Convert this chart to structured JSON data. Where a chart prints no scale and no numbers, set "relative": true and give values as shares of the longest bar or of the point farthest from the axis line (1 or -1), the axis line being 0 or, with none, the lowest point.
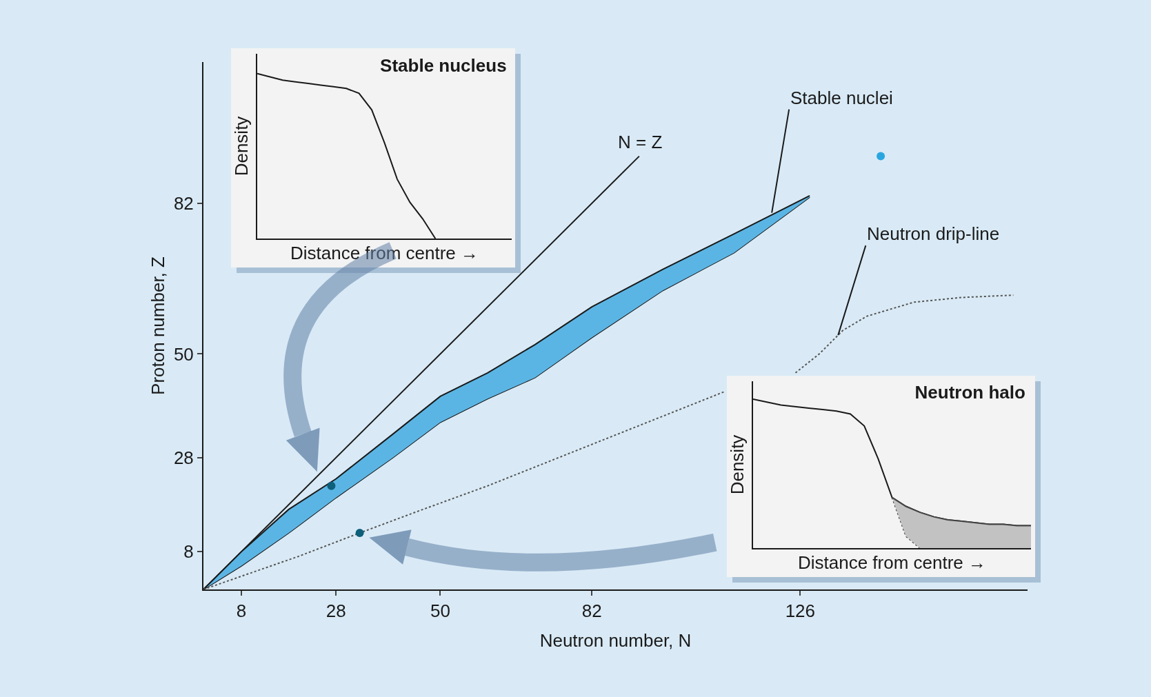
{
  "chart_data": [
    {
      "type": "line",
      "xlabel": "Neutron number, N",
      "ylabel": "Proton number, Z",
      "xlim": [
        0,
        174
      ],
      "ylim": [
        0,
        112
      ],
      "xticks": [
        8,
        28,
        50,
        82,
        126
      ],
      "yticks": [
        8,
        28,
        50,
        82
      ],
      "grid": false,
      "series": [
        {
          "type": "line",
          "color": "#1a1a1a",
          "x": [
            0,
            92
          ],
          "values": [
            0,
            92
          ]
        },
        {
          "type": "line",
          "color": "#1a1a1a",
          "x": [
            0,
            8,
            18,
            28,
            40,
            50,
            60,
            70,
            82,
            97,
            112,
            128
          ],
          "values": [
            0,
            5,
            12,
            19.5,
            28,
            35.5,
            40.5,
            45,
            53.5,
            63.5,
            71.5,
            83.3
          ]
        },
        {
          "type": "area",
          "color": "#5bb5e4",
          "x": [
            0,
            8,
            18,
            28,
            40,
            50,
            60,
            70,
            82,
            97,
            112,
            128
          ],
          "values": [
            0,
            8,
            17,
            23.5,
            33,
            41,
            46,
            52,
            60,
            68,
            75.5,
            83.6
          ]
        },
        {
          "type": "scatter",
          "marker": "circle",
          "color": "#2aa6df",
          "x": [
            143
          ],
          "values": [
            92
          ]
        },
        {
          "type": "line",
          "line_style": "dotted",
          "color": "#555555",
          "x": [
            0,
            10,
            20,
            33,
            45,
            60,
            75,
            90,
            100,
            110,
            115,
            120,
            125,
            130,
            135,
            140,
            150,
            160,
            171
          ],
          "values": [
            0,
            3.5,
            7,
            12,
            16.5,
            22,
            28,
            34,
            38,
            42,
            null,
            null,
            46,
            50,
            55,
            58,
            61,
            62,
            62.5
          ]
        },
        {
          "type": "scatter",
          "marker": "circle",
          "color": "#0d5f7a",
          "x": [
            27,
            33
          ],
          "values": [
            22,
            12
          ]
        }
      ],
      "annotations": [
        "N = Z",
        {
          "text": "Stable nuclei",
          "x": 120,
          "y": 80
        },
        {
          "text": "Neutron drip-line",
          "x": 134,
          "y": 54
        }
      ]
    },
    {
      "type": "line",
      "relative": true,
      "title": "Stable nucleus",
      "xlabel": "Distance from centre →",
      "ylabel": "Density",
      "categories": [
        null,
        null,
        null,
        null,
        null,
        null,
        null,
        null,
        null,
        null,
        null,
        null,
        null,
        null,
        null,
        null,
        null,
        null,
        null,
        null,
        null
      ],
      "series": [
        {
          "color": "#1a1a1a",
          "values": [
            1,
            0.98,
            0.96,
            0.95,
            0.94,
            0.93,
            0.92,
            0.91,
            0.88,
            0.78,
            0.58,
            0.36,
            0.22,
            0.12,
            0,
            null,
            null,
            null,
            null,
            null,
            null
          ]
        }
      ]
    },
    {
      "type": "line",
      "relative": true,
      "title": "Neutron halo",
      "xlabel": "Distance from centre →",
      "ylabel": "Density",
      "categories": [
        null,
        null,
        null,
        null,
        null,
        null,
        null,
        null,
        null,
        null,
        null,
        null,
        null,
        null,
        null,
        null,
        null,
        null,
        null,
        null,
        null
      ],
      "series": [
        {
          "color": "#1a1a1a",
          "values": [
            1,
            0.98,
            0.96,
            0.95,
            0.94,
            0.93,
            0.92,
            0.9,
            0.82,
            0.6,
            0.34,
            0.28,
            0.24,
            0.21,
            0.19,
            0.18,
            0.17,
            0.16,
            0.16,
            0.15,
            0.15
          ]
        },
        {
          "type": "line",
          "line_style": "dotted",
          "color": "#444444",
          "values": [
            null,
            null,
            null,
            null,
            null,
            null,
            null,
            null,
            null,
            null,
            0.34,
            0.08,
            0,
            null,
            null,
            null,
            null,
            null,
            null,
            null,
            null
          ]
        },
        {
          "type": "area",
          "color": "#c2c2c2",
          "values": [
            null,
            null,
            null,
            null,
            null,
            null,
            null,
            null,
            null,
            null,
            0.34,
            0.28,
            0.24,
            0.21,
            0.19,
            0.18,
            0.17,
            0.16,
            0.16,
            0.15,
            0.15
          ]
        }
      ]
    }
  ]
}
